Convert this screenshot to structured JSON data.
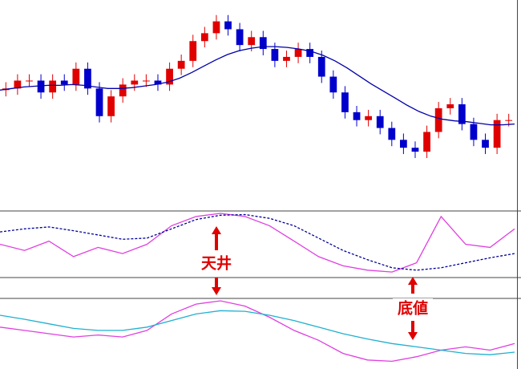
{
  "chart_data": [
    {
      "type": "candlestick",
      "up_color": "#e00000",
      "down_color": "#0000cc",
      "ylim": [
        0,
        262
      ],
      "open": [
        150,
        152,
        162,
        162,
        147,
        162,
        157,
        177,
        152,
        117,
        142,
        157,
        162,
        162,
        157,
        177,
        187,
        212,
        222,
        237,
        227,
        207,
        217,
        202,
        187,
        192,
        202,
        192,
        167,
        147,
        122,
        112,
        117,
        102,
        87,
        77,
        72,
        97,
        127,
        132,
        107,
        87,
        77,
        112
      ],
      "close": [
        152,
        162,
        162,
        147,
        162,
        157,
        177,
        152,
        117,
        142,
        157,
        162,
        162,
        157,
        177,
        187,
        212,
        222,
        237,
        227,
        207,
        217,
        202,
        187,
        192,
        202,
        192,
        167,
        147,
        122,
        112,
        117,
        102,
        87,
        77,
        72,
        97,
        127,
        132,
        107,
        87,
        77,
        112,
        112
      ],
      "high": [
        160,
        170,
        170,
        170,
        170,
        170,
        185,
        185,
        160,
        150,
        165,
        170,
        170,
        170,
        185,
        195,
        220,
        230,
        245,
        245,
        235,
        225,
        225,
        210,
        200,
        210,
        210,
        200,
        175,
        155,
        130,
        125,
        125,
        110,
        95,
        85,
        105,
        135,
        140,
        140,
        115,
        95,
        120,
        120
      ],
      "low": [
        142,
        144,
        154,
        139,
        139,
        149,
        149,
        144,
        109,
        109,
        134,
        149,
        154,
        149,
        149,
        169,
        179,
        204,
        214,
        219,
        199,
        199,
        194,
        179,
        179,
        184,
        184,
        159,
        139,
        114,
        104,
        104,
        94,
        79,
        69,
        64,
        64,
        89,
        119,
        99,
        79,
        69,
        69,
        104
      ],
      "series": [
        {
          "color": "#0000aa",
          "values": [
            150,
            152,
            154,
            155,
            156,
            156,
            157,
            156,
            154,
            152,
            152,
            153,
            155,
            157,
            160,
            165,
            172,
            180,
            188,
            195,
            200,
            203,
            205,
            205,
            204,
            202,
            199,
            194,
            187,
            178,
            168,
            158,
            149,
            140,
            131,
            123,
            117,
            113,
            111,
            110,
            108,
            106,
            106,
            107
          ]
        }
      ]
    },
    {
      "type": "line",
      "ylim": [
        0,
        100
      ],
      "series": [
        {
          "color": "#e040e0",
          "values": [
            50,
            40,
            55,
            30,
            45,
            35,
            50,
            80,
            95,
            100,
            95,
            80,
            55,
            30,
            15,
            8,
            5,
            20,
            95,
            50,
            45,
            75
          ]
        },
        {
          "color": "#000099",
          "dashed": true,
          "values": [
            70,
            75,
            78,
            72,
            65,
            58,
            60,
            75,
            90,
            97,
            98,
            92,
            80,
            60,
            40,
            25,
            12,
            8,
            12,
            20,
            28,
            35
          ]
        }
      ]
    },
    {
      "type": "line",
      "ylim": [
        0,
        100
      ],
      "series": [
        {
          "color": "#e040e0",
          "values": [
            60,
            55,
            50,
            45,
            48,
            45,
            55,
            80,
            95,
            100,
            92,
            75,
            55,
            40,
            20,
            10,
            8,
            15,
            25,
            30,
            25,
            35
          ]
        },
        {
          "color": "#20b0d0",
          "values": [
            78,
            72,
            65,
            58,
            55,
            55,
            60,
            70,
            80,
            85,
            84,
            78,
            70,
            60,
            50,
            42,
            35,
            30,
            25,
            20,
            18,
            22
          ]
        }
      ]
    }
  ],
  "annotations": [
    "天井",
    "底値"
  ]
}
